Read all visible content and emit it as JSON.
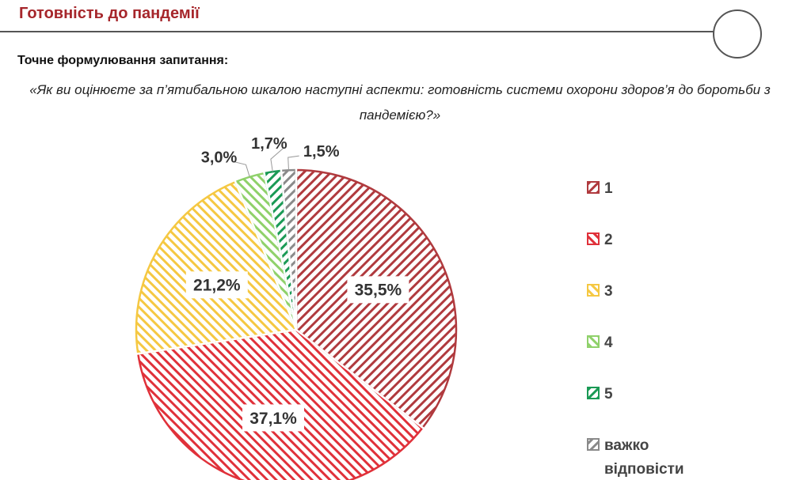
{
  "header": {
    "title": "Готовність до пандемії"
  },
  "question": {
    "label": "Точне формулювання запитання:",
    "text": "«Як ви оцінюєте за п’ятибальною шкалою наступні аспекти: готовність системи охорони здоров’я до боротьби з пандемією?»"
  },
  "chart_data": {
    "type": "pie",
    "title": "",
    "categories": [
      "1",
      "2",
      "3",
      "4",
      "5",
      "важко відповісти"
    ],
    "values": [
      35.5,
      37.1,
      21.2,
      3.0,
      1.7,
      1.5
    ],
    "value_labels": [
      "35,5%",
      "37,1%",
      "21,2%",
      "3,0%",
      "1,7%",
      "1,5%"
    ],
    "legend_labels": [
      [
        "1"
      ],
      [
        "2"
      ],
      [
        "3"
      ],
      [
        "4"
      ],
      [
        "5"
      ],
      [
        "важко",
        "відповісти"
      ]
    ],
    "colors": [
      "#b03a3e",
      "#e0313a",
      "#f5c842",
      "#8fd16a",
      "#1a9a55",
      "#8a8a8a"
    ],
    "start_angle_deg": 0,
    "direction": "clockwise",
    "legend_position": "right"
  }
}
